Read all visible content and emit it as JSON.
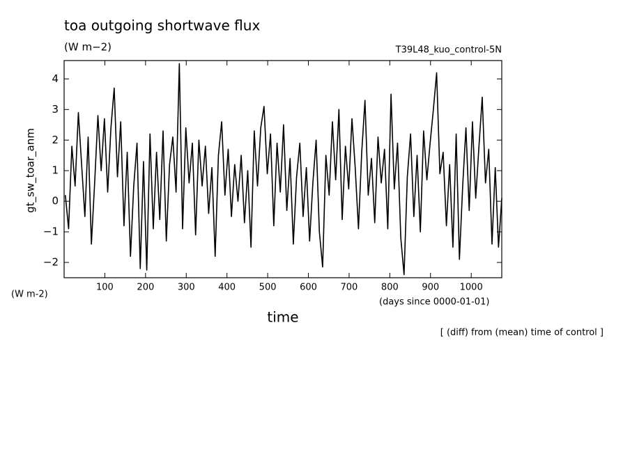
{
  "chart_data": {
    "type": "line",
    "title": "toa outgoing shortwave flux",
    "units": "(W m−2)",
    "run_label": "T39L48_kuo_control-5N",
    "y_label": "gt_sw_toar_anm",
    "y_units": "(W m-2)",
    "x_units": "(days since 0000-01-01)",
    "x_label": "time",
    "note": "[ (diff) from (mean) time of control ]",
    "color": "#000000",
    "xlim": [
      0,
      1075
    ],
    "ylim": [
      -2.5,
      4.6
    ],
    "xticks": [
      100,
      200,
      300,
      400,
      500,
      600,
      700,
      800,
      900,
      1000
    ],
    "yticks": [
      {
        "value": -2,
        "label": "−2"
      },
      {
        "value": -1,
        "label": "−1"
      },
      0,
      1,
      2,
      3,
      4
    ],
    "x": [
      3,
      11,
      19,
      27,
      35,
      43,
      51,
      59,
      67,
      75,
      83,
      91,
      99,
      107,
      115,
      123,
      131,
      139,
      147,
      155,
      163,
      171,
      179,
      187,
      195,
      203,
      211,
      219,
      227,
      235,
      243,
      251,
      259,
      267,
      275,
      283,
      291,
      299,
      307,
      315,
      323,
      331,
      339,
      347,
      355,
      363,
      371,
      379,
      387,
      395,
      403,
      411,
      419,
      427,
      435,
      443,
      451,
      459,
      467,
      475,
      483,
      491,
      499,
      507,
      515,
      523,
      531,
      539,
      547,
      555,
      563,
      571,
      579,
      587,
      595,
      603,
      611,
      619,
      627,
      635,
      643,
      651,
      659,
      667,
      675,
      683,
      691,
      699,
      707,
      715,
      723,
      731,
      739,
      747,
      755,
      763,
      771,
      779,
      787,
      795,
      803,
      811,
      819,
      827,
      835,
      843,
      851,
      859,
      867,
      875,
      883,
      891,
      899,
      907,
      915,
      923,
      931,
      939,
      947,
      955,
      963,
      971,
      979,
      987,
      995,
      1003,
      1011,
      1019,
      1027,
      1035,
      1043,
      1051,
      1059,
      1067,
      1075
    ],
    "values": [
      0.2,
      -0.9,
      1.8,
      0.5,
      2.9,
      1.2,
      -0.5,
      2.1,
      -1.4,
      0.6,
      2.8,
      1.0,
      2.7,
      0.3,
      2.4,
      3.7,
      0.8,
      2.6,
      -0.8,
      1.6,
      -1.8,
      0.5,
      1.9,
      -2.2,
      1.3,
      -2.25,
      2.2,
      -0.9,
      1.6,
      -0.6,
      2.3,
      -1.3,
      1.2,
      2.1,
      0.3,
      4.5,
      -0.9,
      2.4,
      0.6,
      1.9,
      -1.1,
      2.0,
      0.5,
      1.8,
      -0.4,
      1.1,
      -1.8,
      1.5,
      2.6,
      0.2,
      1.7,
      -0.5,
      1.2,
      0.0,
      1.5,
      -0.7,
      1.0,
      -1.5,
      2.3,
      0.5,
      2.4,
      3.1,
      0.9,
      2.2,
      -0.8,
      1.9,
      0.3,
      2.5,
      -0.3,
      1.4,
      -1.4,
      0.8,
      1.9,
      -0.5,
      1.1,
      -1.3,
      0.6,
      2.0,
      -1.0,
      -2.15,
      1.5,
      0.2,
      2.6,
      0.7,
      3.0,
      -0.6,
      1.8,
      0.4,
      2.7,
      1.1,
      -0.9,
      1.6,
      3.3,
      0.2,
      1.4,
      -0.7,
      2.1,
      0.6,
      1.7,
      -0.9,
      3.5,
      0.4,
      1.9,
      -1.2,
      -2.4,
      0.8,
      2.2,
      -0.5,
      1.5,
      -1.0,
      2.3,
      0.7,
      1.9,
      3.0,
      4.2,
      0.9,
      1.6,
      -0.8,
      1.2,
      -1.5,
      2.2,
      -1.9,
      0.5,
      2.4,
      -0.3,
      2.6,
      0.1,
      1.8,
      3.4,
      0.6,
      1.7,
      -1.4,
      1.1,
      -1.5,
      0.1
    ]
  }
}
